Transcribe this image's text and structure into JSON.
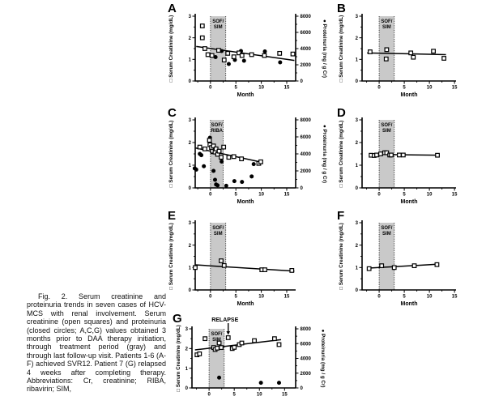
{
  "figure": {
    "caption": "Fig. 2. Serum creatinine and proteinuria trends in seven cases of HCV-MCS with renal involvement. Serum creatinine (open squares) and proteinuria (closed circles; A,C,G) values obtained 3 months prior to DAA therapy initiation, through treatment period (gray) and through last follow-up visit. Patients 1-6 (A-F) achieved SVR12. Patient 7 (G) relapsed 4 weeks after completing therapy. Abbreviations: Cr, creatinine; RIBA, ribavirin; SIM,",
    "legend": {
      "open_square": "Serum creatinine",
      "closed_circle": "Proteinuria"
    }
  },
  "colors": {
    "band": "#c9c9c9",
    "axis": "#000000",
    "background": "#ffffff"
  },
  "chart_data": [
    {
      "panel": "A",
      "type": "scatter",
      "xlabel": "Month",
      "ylabel": "Serum Creatinine (mg/dL)",
      "ylabel_marker": "□",
      "xlim": [
        -3.0,
        16.75
      ],
      "ylim": [
        0,
        3
      ],
      "xticks": [
        0,
        5,
        10,
        15
      ],
      "yticks": [
        0,
        1,
        2,
        3
      ],
      "treatment_band": {
        "x0": 0,
        "x1": 3,
        "label_lines": [
          "SOF/",
          "SIM"
        ]
      },
      "right_axis": {
        "marker": "●",
        "label": "Proteinuria (mg / g Cr)",
        "lim": [
          0,
          8000
        ],
        "ticks": [
          0,
          2000,
          4000,
          6000,
          8000
        ]
      },
      "series": [
        {
          "name": "Serum creatinine",
          "marker": "open-square",
          "axis": "left",
          "points": [
            [
              -1.6,
              2.55
            ],
            [
              -1.6,
              2.0
            ],
            [
              -1.1,
              1.5
            ],
            [
              -0.5,
              1.22
            ],
            [
              0.3,
              1.18
            ],
            [
              1.6,
              1.42
            ],
            [
              2.7,
              0.97
            ],
            [
              3.4,
              1.28
            ],
            [
              4.6,
              1.12
            ],
            [
              5.6,
              1.3
            ],
            [
              6.2,
              1.18
            ],
            [
              8.1,
              1.22
            ],
            [
              10.6,
              1.18
            ],
            [
              13.6,
              1.28
            ],
            [
              16.2,
              1.25
            ]
          ]
        },
        {
          "name": "Proteinuria",
          "marker": "closed-circle",
          "axis": "right",
          "points": [
            [
              -1.6,
              6800
            ],
            [
              -1.6,
              5350
            ],
            [
              -0.4,
              3300
            ],
            [
              1.0,
              2950
            ],
            [
              2.2,
              3700
            ],
            [
              3.6,
              2100
            ],
            [
              4.8,
              2600
            ],
            [
              6.0,
              3700
            ],
            [
              6.6,
              2500
            ],
            [
              10.7,
              3650
            ],
            [
              13.7,
              2300
            ]
          ]
        }
      ],
      "trend": {
        "x1": -2.8,
        "y1": 1.6,
        "x2": 16.5,
        "y2": 0.95
      },
      "annotation": null
    },
    {
      "panel": "B",
      "type": "scatter",
      "xlabel": "Month",
      "ylabel": "Serum Creatinine (mg/dL)",
      "ylabel_marker": "□",
      "xlim": [
        -3.4,
        15.3
      ],
      "ylim": [
        0,
        3
      ],
      "xticks": [
        0,
        5,
        10,
        15
      ],
      "yticks": [
        0,
        1,
        2,
        3
      ],
      "treatment_band": {
        "x0": 0,
        "x1": 3,
        "label_lines": [
          "SOF/",
          "SIM"
        ]
      },
      "right_axis": null,
      "series": [
        {
          "name": "Serum creatinine",
          "marker": "open-square",
          "axis": "left",
          "points": [
            [
              -1.8,
              1.35
            ],
            [
              1.5,
              1.45
            ],
            [
              1.4,
              1.02
            ],
            [
              6.3,
              1.3
            ],
            [
              6.8,
              1.1
            ],
            [
              10.8,
              1.38
            ],
            [
              12.9,
              1.05
            ]
          ]
        }
      ],
      "trend": {
        "x1": -2.4,
        "y1": 1.3,
        "x2": 13.3,
        "y2": 1.22
      },
      "annotation": null
    },
    {
      "panel": "C",
      "type": "scatter",
      "xlabel": "Month",
      "ylabel": "Serum Creatinine (mg/dL)",
      "ylabel_marker": "□",
      "xlim": [
        -3.0,
        16.75
      ],
      "ylim": [
        0,
        3
      ],
      "xticks": [
        0,
        5,
        10,
        15
      ],
      "yticks": [
        0,
        1,
        2,
        3
      ],
      "treatment_band": {
        "x0": 0,
        "x1": 2.5,
        "label_lines": [
          "SOF/",
          "RIBA"
        ]
      },
      "right_axis": {
        "marker": "●",
        "label": "Proteinuria (mg / g Cr)",
        "lim": [
          0,
          8000
        ],
        "ticks": [
          0,
          2000,
          4000,
          6000,
          8000
        ]
      },
      "series": [
        {
          "name": "Serum creatinine",
          "marker": "open-square",
          "axis": "left",
          "points": [
            [
              -2.1,
              1.8
            ],
            [
              -1.1,
              1.72
            ],
            [
              -0.2,
              2.1
            ],
            [
              -0.1,
              1.9
            ],
            [
              0.2,
              1.78
            ],
            [
              0.4,
              1.62
            ],
            [
              0.6,
              1.85
            ],
            [
              0.9,
              1.58
            ],
            [
              1.1,
              1.72
            ],
            [
              1.4,
              1.48
            ],
            [
              1.7,
              1.62
            ],
            [
              2.1,
              1.35
            ],
            [
              2.6,
              1.8
            ],
            [
              3.6,
              1.35
            ],
            [
              4.6,
              1.38
            ],
            [
              6.1,
              1.28
            ],
            [
              9.5,
              1.08
            ],
            [
              9.9,
              1.15
            ]
          ]
        },
        {
          "name": "Proteinuria",
          "marker": "closed-circle",
          "axis": "right",
          "points": [
            [
              -3.1,
              2300
            ],
            [
              -2.8,
              2150
            ],
            [
              -2.1,
              4000
            ],
            [
              -1.8,
              3850
            ],
            [
              -1.3,
              2550
            ],
            [
              -0.1,
              5900
            ],
            [
              0.3,
              4200
            ],
            [
              0.6,
              2000
            ],
            [
              0.9,
              950
            ],
            [
              1.1,
              400
            ],
            [
              1.4,
              300
            ],
            [
              2.2,
              3100
            ],
            [
              3.1,
              250
            ],
            [
              4.7,
              800
            ],
            [
              6.2,
              700
            ],
            [
              8.1,
              1350
            ],
            [
              8.5,
              2800
            ]
          ]
        }
      ],
      "trend": {
        "x1": -2.9,
        "y1": 1.76,
        "x2": 10.3,
        "y2": 1.12
      },
      "annotation": null
    },
    {
      "panel": "D",
      "type": "scatter",
      "xlabel": "Month",
      "ylabel": "Serum Creatinine (mg/dL)",
      "ylabel_marker": "□",
      "xlim": [
        -3.4,
        15.3
      ],
      "ylim": [
        0,
        3
      ],
      "xticks": [
        0,
        5,
        10,
        15
      ],
      "yticks": [
        0,
        1,
        2,
        3
      ],
      "treatment_band": {
        "x0": 0,
        "x1": 3,
        "label_lines": [
          "SOF/",
          "SIM"
        ]
      },
      "right_axis": null,
      "series": [
        {
          "name": "Serum creatinine",
          "marker": "open-square",
          "axis": "left",
          "points": [
            [
              -1.6,
              1.44
            ],
            [
              -1.0,
              1.43
            ],
            [
              -0.5,
              1.45
            ],
            [
              0.3,
              1.5
            ],
            [
              1.1,
              1.55
            ],
            [
              1.5,
              1.55
            ],
            [
              2.1,
              1.45
            ],
            [
              2.4,
              1.45
            ],
            [
              4.0,
              1.45
            ],
            [
              4.8,
              1.45
            ],
            [
              11.6,
              1.44
            ]
          ]
        }
      ],
      "trend": {
        "x1": -1.9,
        "y1": 1.48,
        "x2": 12.0,
        "y2": 1.44
      },
      "annotation": null
    },
    {
      "panel": "E",
      "type": "scatter",
      "xlabel": "Month",
      "ylabel": "Serum Creatinine (mg/dL)",
      "ylabel_marker": "□",
      "xlim": [
        -3.0,
        16.75
      ],
      "ylim": [
        0,
        3
      ],
      "xticks": [
        0,
        5,
        10,
        15
      ],
      "yticks": [
        0,
        1,
        2,
        3
      ],
      "treatment_band": {
        "x0": 0,
        "x1": 3,
        "label_lines": [
          "SOF/",
          "SIM"
        ]
      },
      "right_axis": null,
      "series": [
        {
          "name": "Serum creatinine",
          "marker": "open-square",
          "axis": "left",
          "points": [
            [
              -3.0,
              1.0
            ],
            [
              2.1,
              1.3
            ],
            [
              2.7,
              1.09
            ],
            [
              10.1,
              0.9
            ],
            [
              10.7,
              0.9
            ],
            [
              16.0,
              0.87
            ]
          ]
        }
      ],
      "trend": {
        "x1": -3.0,
        "y1": 1.12,
        "x2": 16.5,
        "y2": 0.84
      },
      "annotation": null
    },
    {
      "panel": "F",
      "type": "scatter",
      "xlabel": "Month",
      "ylabel": "Serum Creatinine (mg/dL)",
      "ylabel_marker": "□",
      "xlim": [
        -3.4,
        15.3
      ],
      "ylim": [
        0,
        3
      ],
      "xticks": [
        0,
        5,
        10,
        15
      ],
      "yticks": [
        0,
        1,
        2,
        3
      ],
      "treatment_band": {
        "x0": 0,
        "x1": 3,
        "label_lines": [
          "SOF/",
          "SIM"
        ]
      },
      "right_axis": null,
      "series": [
        {
          "name": "Serum creatinine",
          "marker": "open-square",
          "axis": "left",
          "points": [
            [
              -2.0,
              0.95
            ],
            [
              0.5,
              1.08
            ],
            [
              3.0,
              1.0
            ],
            [
              7.0,
              1.08
            ],
            [
              11.5,
              1.13
            ]
          ]
        }
      ],
      "trend": {
        "x1": -2.4,
        "y1": 0.97,
        "x2": 11.9,
        "y2": 1.15
      },
      "annotation": null
    },
    {
      "panel": "G",
      "type": "scatter",
      "xlabel": "",
      "ylabel": "Serum Creatinine (mg/dL)",
      "ylabel_marker": "□",
      "xlim": [
        -3.4,
        17.2
      ],
      "ylim": [
        0,
        3
      ],
      "xticks": [
        0,
        5,
        10,
        15
      ],
      "yticks": [
        0,
        1,
        2,
        3
      ],
      "treatment_band": {
        "x0": 0,
        "x1": 3,
        "label_lines": [
          "SOF/",
          "SIM"
        ]
      },
      "right_axis": {
        "marker": "●",
        "label": "Proteinuria (mg / g Cr)",
        "lim": [
          0,
          8000
        ],
        "ticks": [
          0,
          2000,
          4000,
          6000,
          8000
        ]
      },
      "series": [
        {
          "name": "Serum creatinine",
          "marker": "open-square",
          "axis": "left",
          "points": [
            [
              -2.4,
              1.68
            ],
            [
              -1.9,
              1.73
            ],
            [
              -0.8,
              2.5
            ],
            [
              0.9,
              2.05
            ],
            [
              1.2,
              1.95
            ],
            [
              1.6,
              2.02
            ],
            [
              2.0,
              2.28
            ],
            [
              2.4,
              2.05
            ],
            [
              3.8,
              2.55
            ],
            [
              4.6,
              2.0
            ],
            [
              5.0,
              2.06
            ],
            [
              6.0,
              2.2
            ],
            [
              6.5,
              2.28
            ],
            [
              9.0,
              2.4
            ],
            [
              13.0,
              2.5
            ],
            [
              13.9,
              2.2
            ]
          ]
        },
        {
          "name": "Proteinuria",
          "marker": "closed-circle",
          "axis": "right",
          "points": [
            [
              2.0,
              1400
            ],
            [
              10.3,
              700
            ],
            [
              13.9,
              700
            ]
          ]
        }
      ],
      "trend": {
        "x1": -2.8,
        "y1": 1.93,
        "x2": 14.3,
        "y2": 2.45
      },
      "annotation": {
        "text": "RELAPSE",
        "x": 3.8
      }
    }
  ]
}
